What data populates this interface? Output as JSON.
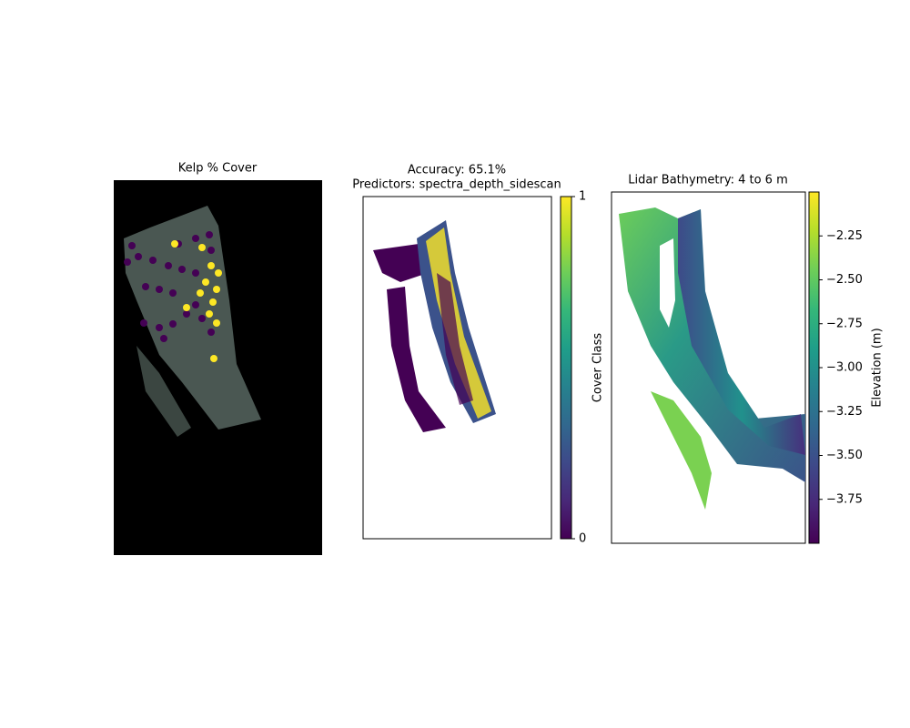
{
  "chart_data": [
    {
      "type": "image",
      "title": "Kelp % Cover"
    },
    {
      "type": "image",
      "title": "Accuracy: 65.1%",
      "subtitle": "Predictors: spectra_depth_sidescan",
      "colorbar": {
        "label": "Cover Class",
        "colormap": "viridis",
        "lim": [
          0,
          1
        ],
        "ticks": [
          0,
          1
        ]
      }
    },
    {
      "type": "image",
      "title": "Lidar Bathymetry: 4 to 6 m",
      "colorbar": {
        "label": "Elevation (m)",
        "colormap": "viridis",
        "lim": [
          -4.0,
          -2.0
        ],
        "ticks": [
          {
            "value": -2.25,
            "label": "−2.25"
          },
          {
            "value": -2.5,
            "label": "−2.50"
          },
          {
            "value": -2.75,
            "label": "−2.75"
          },
          {
            "value": -3.0,
            "label": "−3.00"
          },
          {
            "value": -3.25,
            "label": "−3.25"
          },
          {
            "value": -3.5,
            "label": "−3.50"
          },
          {
            "value": -3.75,
            "label": "−3.75"
          }
        ]
      }
    }
  ]
}
